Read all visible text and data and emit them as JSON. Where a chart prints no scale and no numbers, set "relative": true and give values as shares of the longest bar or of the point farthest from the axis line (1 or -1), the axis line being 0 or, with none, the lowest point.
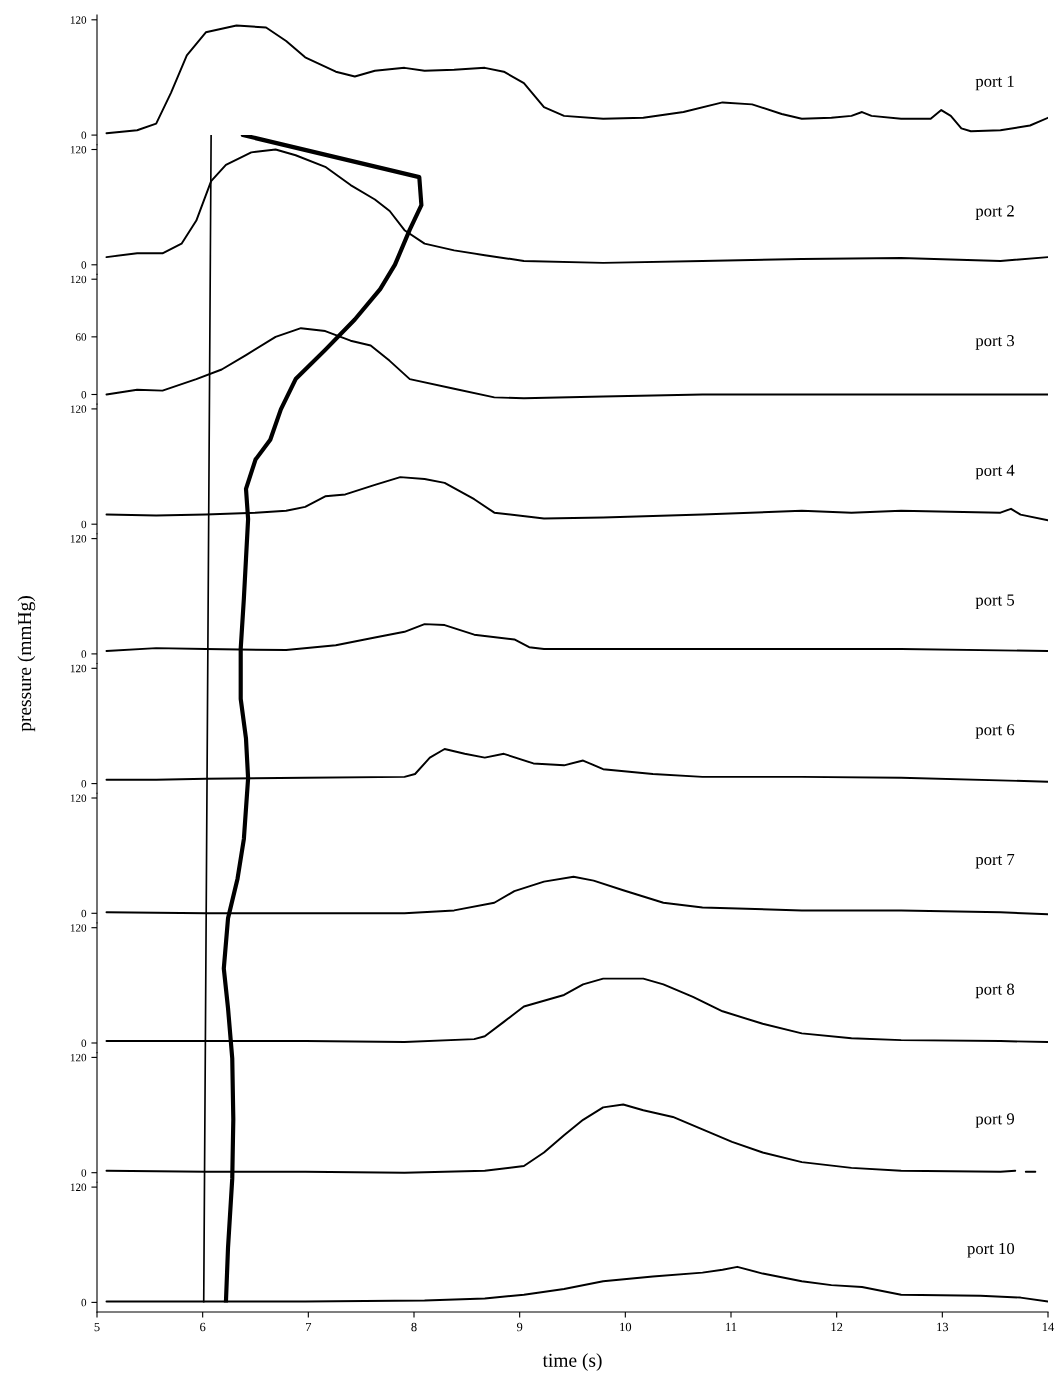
{
  "chart_data": [
    {
      "type": "line",
      "xlim": [
        5,
        14
      ],
      "ylim": [
        -10,
        125
      ],
      "yticks": [
        0,
        120
      ],
      "tick_labels": "y",
      "series": [
        {
          "name": "port 1",
          "color": "#000000",
          "x": [
            5.09,
            5.38,
            5.56,
            5.7,
            5.85,
            6.03,
            6.32,
            6.6,
            6.79,
            6.97,
            7.26,
            7.44,
            7.63,
            7.91,
            8.1,
            8.38,
            8.67,
            8.85,
            9.04,
            9.23,
            9.42,
            9.79,
            10.17,
            10.55,
            10.92,
            11.2,
            11.48,
            11.67,
            11.95,
            12.14,
            12.24,
            12.33,
            12.61,
            12.89,
            12.99,
            13.08,
            13.18,
            13.27,
            13.55,
            13.83,
            14.0
          ],
          "values": [
            2,
            5,
            12,
            44,
            83,
            107,
            114,
            112,
            98,
            81,
            66,
            61,
            67,
            70,
            67,
            68,
            70,
            66,
            54,
            29,
            20,
            17,
            18,
            24,
            34,
            32,
            22,
            17,
            18,
            20,
            24,
            20,
            17,
            17,
            26,
            20,
            7,
            4,
            5,
            10,
            18
          ]
        }
      ]
    },
    {
      "type": "line",
      "xlim": [
        5,
        14
      ],
      "ylim": [
        -10,
        125
      ],
      "yticks": [
        0,
        120
      ],
      "tick_labels": "y",
      "series": [
        {
          "name": "port 2",
          "color": "#000000",
          "x": [
            5.09,
            5.38,
            5.62,
            5.8,
            5.94,
            6.08,
            6.22,
            6.46,
            6.69,
            6.88,
            7.16,
            7.4,
            7.63,
            7.77,
            7.91,
            8.1,
            8.38,
            8.67,
            9.04,
            9.79,
            10.73,
            11.67,
            12.61,
            13.55,
            14.0
          ],
          "values": [
            8,
            12,
            12,
            22,
            46,
            87,
            104,
            117,
            120,
            114,
            102,
            83,
            68,
            56,
            36,
            22,
            15,
            10,
            4,
            2,
            4,
            6,
            7,
            4,
            8
          ]
        }
      ]
    },
    {
      "type": "line",
      "xlim": [
        5,
        14
      ],
      "ylim": [
        -10,
        125
      ],
      "yticks": [
        0,
        60,
        120
      ],
      "tick_labels": "y",
      "series": [
        {
          "name": "port 3",
          "color": "#000000",
          "x": [
            5.09,
            5.38,
            5.62,
            5.94,
            6.18,
            6.41,
            6.69,
            6.93,
            7.16,
            7.4,
            7.59,
            7.77,
            7.96,
            8.38,
            8.76,
            9.04,
            9.79,
            10.73,
            11.67,
            12.61,
            14.0
          ],
          "values": [
            0,
            5,
            4,
            16,
            26,
            41,
            60,
            69,
            66,
            56,
            51,
            35,
            16,
            6,
            -3,
            -4,
            -2,
            0,
            0,
            0,
            0
          ]
        }
      ]
    },
    {
      "type": "line",
      "xlim": [
        5,
        14
      ],
      "ylim": [
        -10,
        125
      ],
      "yticks": [
        0,
        120
      ],
      "tick_labels": "y",
      "series": [
        {
          "name": "port 4",
          "color": "#000000",
          "x": [
            5.09,
            5.56,
            6.03,
            6.5,
            6.79,
            6.97,
            7.16,
            7.35,
            7.63,
            7.87,
            8.1,
            8.29,
            8.57,
            8.76,
            9.23,
            9.79,
            10.73,
            11.67,
            12.14,
            12.61,
            13.55,
            13.65,
            13.74,
            14.0
          ],
          "values": [
            10,
            9,
            10,
            12,
            14,
            18,
            29,
            31,
            41,
            49,
            47,
            43,
            26,
            12,
            6,
            7,
            10,
            14,
            12,
            14,
            12,
            16,
            10,
            4
          ]
        }
      ]
    },
    {
      "type": "line",
      "xlim": [
        5,
        14
      ],
      "ylim": [
        -10,
        125
      ],
      "yticks": [
        0,
        120
      ],
      "tick_labels": "y",
      "ylabel": "pressure (mmHg)",
      "series": [
        {
          "name": "port 5",
          "color": "#000000",
          "x": [
            5.09,
            5.56,
            6.03,
            6.79,
            7.26,
            7.63,
            7.91,
            8.1,
            8.29,
            8.57,
            8.95,
            9.09,
            9.23,
            9.79,
            10.73,
            11.67,
            12.61,
            14.0
          ],
          "values": [
            3,
            6,
            5,
            4,
            9,
            17,
            23,
            31,
            30,
            20,
            15,
            7,
            5,
            5,
            5,
            5,
            5,
            3
          ]
        }
      ]
    },
    {
      "type": "line",
      "xlim": [
        5,
        14
      ],
      "ylim": [
        -10,
        125
      ],
      "yticks": [
        0,
        120
      ],
      "tick_labels": "y",
      "series": [
        {
          "name": "port 6",
          "color": "#000000",
          "x": [
            5.09,
            5.56,
            6.03,
            6.97,
            7.91,
            8.01,
            8.15,
            8.29,
            8.48,
            8.67,
            8.85,
            9.13,
            9.42,
            9.6,
            9.79,
            10.26,
            10.73,
            11.67,
            12.61,
            14.0
          ],
          "values": [
            4,
            4,
            5,
            6,
            7,
            10,
            27,
            36,
            31,
            27,
            31,
            21,
            19,
            24,
            15,
            10,
            7,
            7,
            6,
            2
          ]
        }
      ]
    },
    {
      "type": "line",
      "xlim": [
        5,
        14
      ],
      "ylim": [
        -10,
        125
      ],
      "yticks": [
        0,
        120
      ],
      "tick_labels": "y",
      "series": [
        {
          "name": "port 7",
          "color": "#000000",
          "x": [
            5.09,
            6.03,
            6.97,
            7.91,
            8.38,
            8.76,
            8.95,
            9.23,
            9.51,
            9.7,
            9.98,
            10.36,
            10.73,
            11.67,
            12.61,
            13.55,
            14.0
          ],
          "values": [
            1,
            0,
            0,
            0,
            3,
            11,
            23,
            33,
            38,
            34,
            24,
            11,
            6,
            3,
            3,
            1,
            -1
          ]
        }
      ]
    },
    {
      "type": "line",
      "xlim": [
        5,
        14
      ],
      "ylim": [
        -10,
        125
      ],
      "yticks": [
        0,
        120
      ],
      "tick_labels": "y",
      "series": [
        {
          "name": "port 8",
          "color": "#000000",
          "x": [
            5.09,
            6.03,
            6.97,
            7.91,
            8.57,
            8.67,
            8.85,
            9.04,
            9.42,
            9.6,
            9.79,
            10.17,
            10.36,
            10.64,
            10.92,
            11.3,
            11.67,
            12.14,
            12.61,
            13.55,
            14.0
          ],
          "values": [
            2,
            2,
            2,
            1,
            4,
            7,
            22,
            38,
            50,
            61,
            67,
            67,
            61,
            48,
            33,
            20,
            10,
            5,
            3,
            2,
            1
          ]
        }
      ]
    },
    {
      "type": "line",
      "xlim": [
        5,
        14
      ],
      "ylim": [
        -10,
        125
      ],
      "yticks": [
        0,
        120
      ],
      "tick_labels": "y",
      "series": [
        {
          "name": "port 9",
          "color": "#000000",
          "x": [
            5.09,
            6.03,
            6.97,
            7.91,
            8.67,
            9.04,
            9.23,
            9.42,
            9.6,
            9.79,
            9.98,
            10.17,
            10.45,
            10.73,
            11.01,
            11.3,
            11.67,
            12.14,
            12.61,
            13.55,
            13.69,
            13.74,
            13.79,
            13.88
          ],
          "values": [
            2,
            1,
            1,
            0,
            2,
            7,
            21,
            39,
            55,
            68,
            71,
            65,
            58,
            45,
            32,
            21,
            11,
            5,
            2,
            1,
            2,
            null,
            1,
            1
          ]
        }
      ]
    },
    {
      "type": "line",
      "xlim": [
        5,
        14
      ],
      "ylim": [
        -10,
        125
      ],
      "yticks": [
        0,
        120
      ],
      "xticks": [
        5,
        6,
        7,
        8,
        9,
        10,
        11,
        12,
        13,
        14
      ],
      "xlabel": "time (s)",
      "series": [
        {
          "name": "port 10",
          "color": "#000000",
          "x": [
            5.09,
            6.97,
            8.1,
            8.67,
            9.04,
            9.42,
            9.79,
            10.26,
            10.73,
            10.92,
            11.06,
            11.3,
            11.67,
            11.95,
            12.24,
            12.61,
            13.36,
            13.74,
            14.0
          ],
          "values": [
            1,
            1,
            2,
            4,
            8,
            14,
            22,
            27,
            31,
            34,
            37,
            30,
            22,
            18,
            16,
            8,
            7,
            5,
            1
          ]
        }
      ]
    },
    {
      "type": "line",
      "relative": true,
      "xlim": [
        5,
        14
      ],
      "tick_labels": false,
      "series": [
        {
          "color": "#000000",
          "x": [
            6.38,
            8.05,
            8.07,
            7.96,
            7.82,
            7.68,
            7.44,
            7.16,
            6.88,
            6.74,
            6.64,
            6.5,
            6.41,
            6.43,
            6.41,
            6.39,
            6.36,
            6.36,
            6.41,
            6.43,
            6.39,
            6.33,
            6.24,
            6.2,
            6.24,
            6.28,
            6.29,
            6.28,
            6.24,
            6.22
          ],
          "values": [
            1.0,
            0.964,
            0.94,
            0.919,
            0.889,
            0.868,
            0.842,
            0.816,
            0.791,
            0.765,
            0.739,
            0.722,
            0.697,
            0.671,
            0.637,
            0.603,
            0.56,
            0.517,
            0.483,
            0.449,
            0.397,
            0.363,
            0.329,
            0.286,
            0.252,
            0.209,
            0.157,
            0.106,
            0.047,
            0
          ]
        },
        {
          "color": "#000000",
          "x": [
            6.08,
            6.01
          ],
          "values": [
            1.0,
            0
          ]
        }
      ]
    }
  ]
}
